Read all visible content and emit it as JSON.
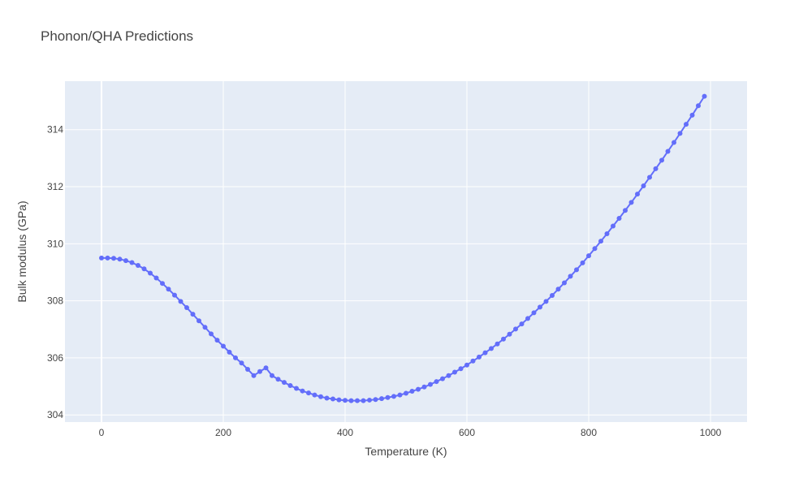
{
  "chart_data": {
    "type": "line",
    "title": "Phonon/QHA Predictions",
    "xlabel": "Temperature (K)",
    "ylabel": "Bulk modulus (GPa)",
    "xlim": [
      -60,
      1060
    ],
    "ylim": [
      303.75,
      315.7
    ],
    "xticks": [
      0,
      200,
      400,
      600,
      800,
      1000
    ],
    "yticks": [
      304,
      306,
      308,
      310,
      312,
      314
    ],
    "grid": true,
    "legend": "none",
    "colors": {
      "plot_bg": "#e5ecf6",
      "grid": "#ffffff",
      "series": "#636efa",
      "text": "#444444"
    },
    "series": [
      {
        "mode": "lines+markers",
        "x": [
          0,
          10,
          20,
          30,
          40,
          50,
          60,
          70,
          80,
          90,
          100,
          110,
          120,
          130,
          140,
          150,
          160,
          170,
          180,
          190,
          200,
          210,
          220,
          230,
          240,
          250,
          260,
          270,
          280,
          290,
          300,
          310,
          320,
          330,
          340,
          350,
          360,
          370,
          380,
          390,
          400,
          410,
          420,
          430,
          440,
          450,
          460,
          470,
          480,
          490,
          500,
          510,
          520,
          530,
          540,
          550,
          560,
          570,
          580,
          590,
          600,
          610,
          620,
          630,
          640,
          650,
          660,
          670,
          680,
          690,
          700,
          710,
          720,
          730,
          740,
          750,
          760,
          770,
          780,
          790,
          800,
          810,
          820,
          830,
          840,
          850,
          860,
          870,
          880,
          890,
          900,
          910,
          920,
          930,
          940,
          950,
          960,
          970,
          980,
          990
        ],
        "y": [
          309.5,
          309.5,
          309.49,
          309.46,
          309.41,
          309.34,
          309.24,
          309.12,
          308.97,
          308.8,
          308.61,
          308.41,
          308.2,
          307.98,
          307.76,
          307.53,
          307.3,
          307.07,
          306.84,
          306.62,
          306.41,
          306.2,
          306.0,
          305.82,
          305.6,
          305.38,
          305.52,
          305.65,
          305.38,
          305.25,
          305.14,
          305.03,
          304.93,
          304.84,
          304.77,
          304.7,
          304.64,
          304.59,
          304.56,
          304.53,
          304.51,
          304.5,
          304.5,
          304.5,
          304.52,
          304.54,
          304.57,
          304.61,
          304.65,
          304.7,
          304.76,
          304.83,
          304.9,
          304.98,
          305.07,
          305.17,
          305.27,
          305.38,
          305.5,
          305.62,
          305.75,
          305.89,
          306.03,
          306.18,
          306.33,
          306.49,
          306.66,
          306.83,
          307.01,
          307.19,
          307.38,
          307.58,
          307.78,
          307.98,
          308.19,
          308.41,
          308.63,
          308.86,
          309.09,
          309.33,
          309.58,
          309.83,
          310.09,
          310.35,
          310.62,
          310.89,
          311.17,
          311.45,
          311.74,
          312.03,
          312.33,
          312.63,
          312.93,
          313.24,
          313.55,
          313.87,
          314.19,
          314.51,
          314.84,
          315.17
        ]
      }
    ]
  }
}
